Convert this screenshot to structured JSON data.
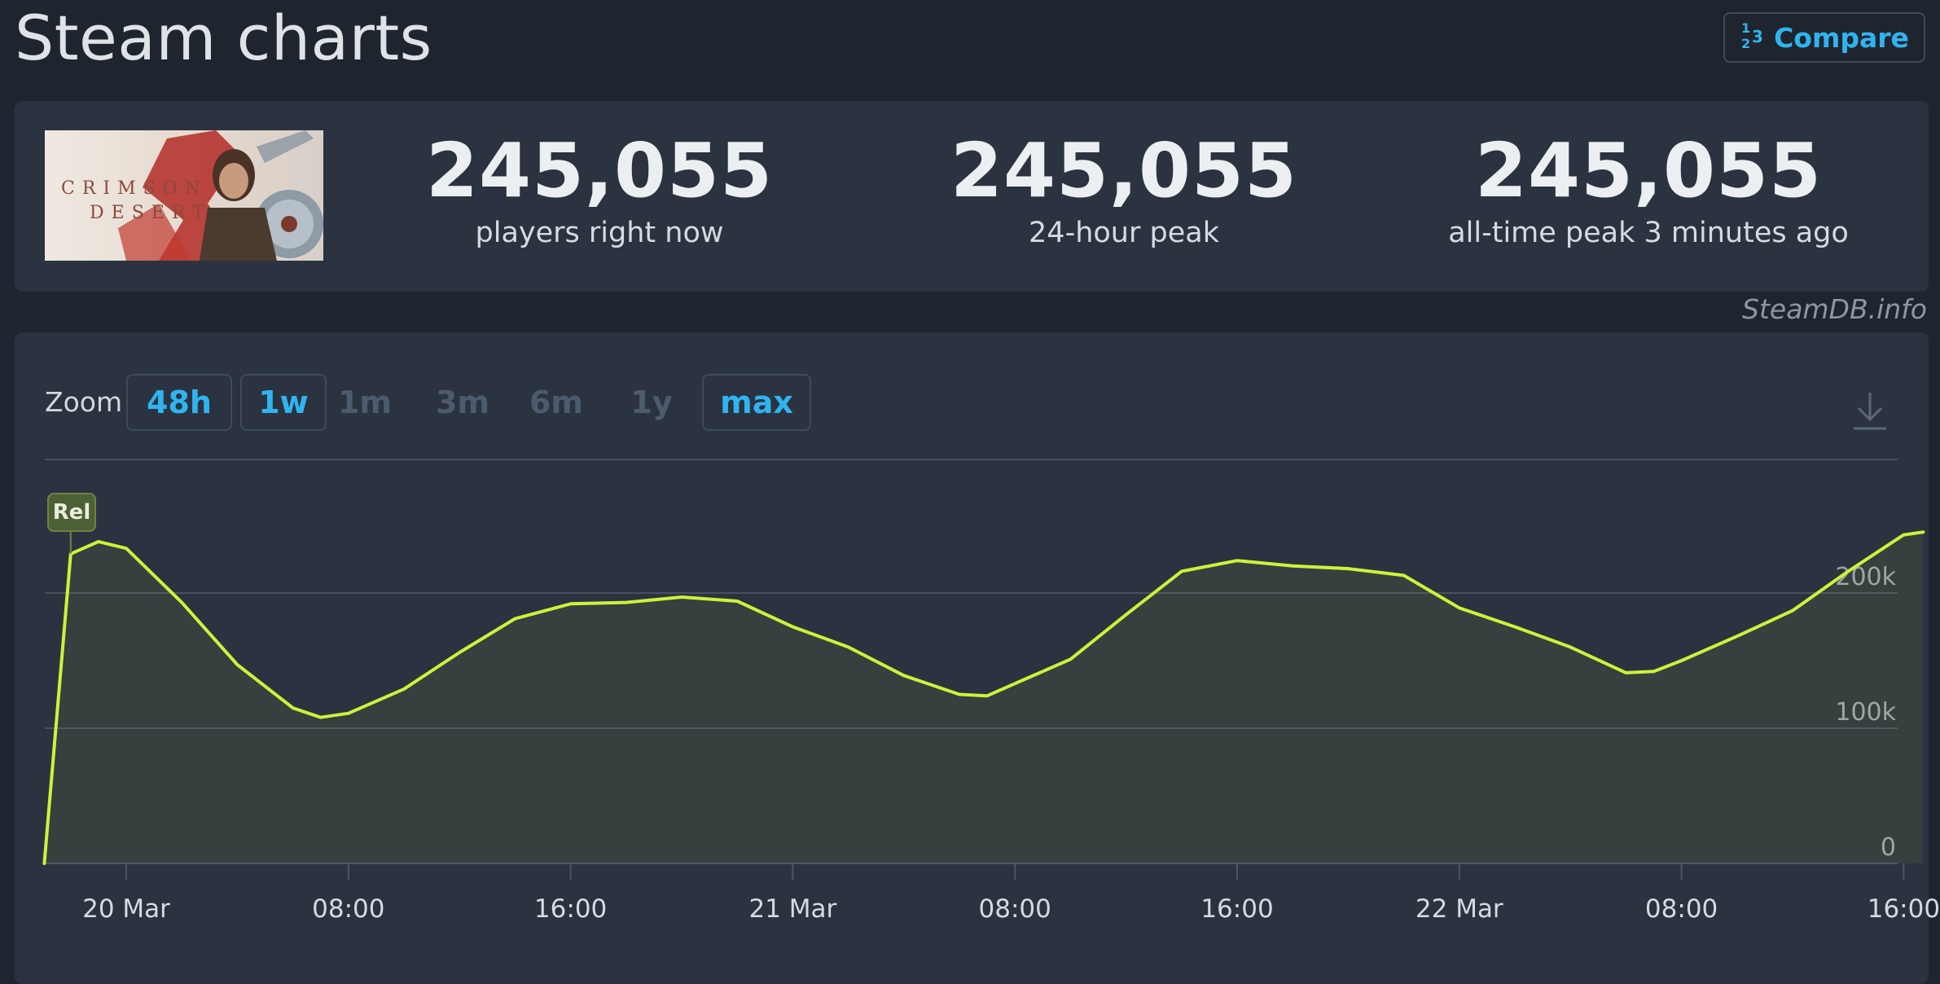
{
  "header": {
    "title": "Steam charts",
    "compare_label": "Compare",
    "compare_icon": "1/2/3"
  },
  "stats": [
    {
      "value": "245,055",
      "label": "players right now"
    },
    {
      "value": "245,055",
      "label": "24-hour peak"
    },
    {
      "value": "245,055",
      "label": "all-time peak 3 minutes ago"
    }
  ],
  "game": {
    "thumb_text_line1": "CRIMSON",
    "thumb_text_line2": "DESERT"
  },
  "watermark": "SteamDB.info",
  "zoom": {
    "label": "Zoom",
    "options": [
      {
        "label": "48h",
        "active": true
      },
      {
        "label": "1w",
        "active": true
      },
      {
        "label": "1m",
        "active": false
      },
      {
        "label": "3m",
        "active": false
      },
      {
        "label": "6m",
        "active": false
      },
      {
        "label": "1y",
        "active": false
      },
      {
        "label": "max",
        "active": true
      }
    ]
  },
  "badge": "Rel",
  "colors": {
    "accent": "#2fb4f0",
    "line": "#cdf23a",
    "panel": "#2b3340",
    "background": "#1f252e"
  },
  "chart_data": {
    "type": "area",
    "xlabels": [
      "20 Mar",
      "08:00",
      "16:00",
      "21 Mar",
      "08:00",
      "16:00",
      "22 Mar",
      "08:00",
      "16:00"
    ],
    "x_hours": [
      0,
      8,
      16,
      24,
      32,
      40,
      48,
      56,
      64
    ],
    "ylabels": [
      "200k",
      "100k",
      "0"
    ],
    "y_ticks": [
      200000,
      100000,
      0
    ],
    "ylim": [
      0,
      290000
    ],
    "grid": true,
    "series": [
      {
        "name": "",
        "points": [
          [
            -2.95,
            0
          ],
          [
            -2.0,
            229000
          ],
          [
            -1.0,
            238000
          ],
          [
            0,
            233000
          ],
          [
            2,
            193000
          ],
          [
            4,
            147000
          ],
          [
            6,
            115000
          ],
          [
            7,
            108000
          ],
          [
            8,
            111000
          ],
          [
            10,
            129000
          ],
          [
            12,
            156000
          ],
          [
            14,
            181000
          ],
          [
            16,
            192000
          ],
          [
            18,
            193000
          ],
          [
            20,
            197000
          ],
          [
            22,
            194000
          ],
          [
            24,
            175000
          ],
          [
            26,
            160000
          ],
          [
            28,
            139000
          ],
          [
            30,
            125000
          ],
          [
            31,
            124000
          ],
          [
            32,
            133000
          ],
          [
            34,
            151000
          ],
          [
            36,
            184000
          ],
          [
            38,
            216000
          ],
          [
            40,
            224000
          ],
          [
            42,
            220000
          ],
          [
            44,
            218000
          ],
          [
            46,
            213000
          ],
          [
            48,
            189000
          ],
          [
            50,
            175000
          ],
          [
            52,
            160000
          ],
          [
            54,
            141000
          ],
          [
            55,
            142000
          ],
          [
            56,
            150000
          ],
          [
            58,
            168000
          ],
          [
            60,
            187000
          ],
          [
            62,
            216000
          ],
          [
            64,
            243000
          ],
          [
            64.7,
            245055
          ]
        ]
      }
    ]
  }
}
